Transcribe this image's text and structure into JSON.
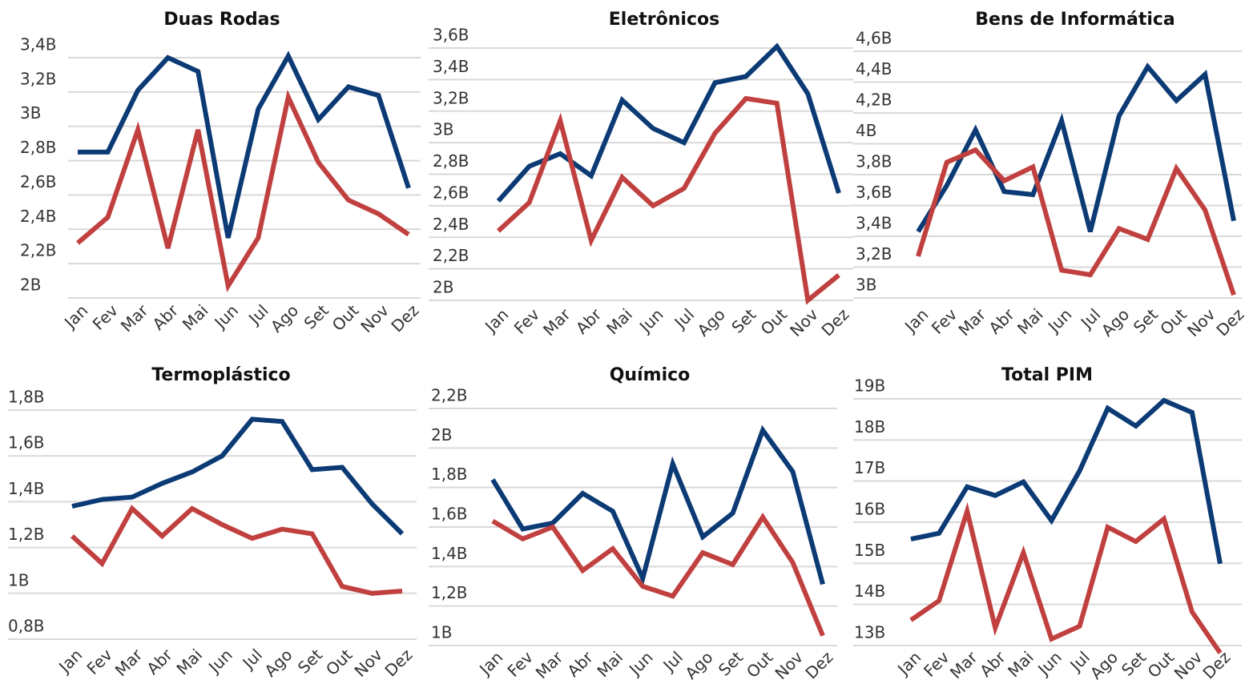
{
  "chart_data": [
    {
      "type": "line",
      "title": "Duas Rodas",
      "categories": [
        "Jan",
        "Fev",
        "Mar",
        "Abr",
        "Mai",
        "Jun",
        "Jul",
        "Ago",
        "Set",
        "Out",
        "Nov",
        "Dez"
      ],
      "series": [
        {
          "color": "#0b3a75",
          "values": [
            2.85,
            2.85,
            3.21,
            3.4,
            3.32,
            2.35,
            3.1,
            3.41,
            3.04,
            3.23,
            3.18,
            2.64
          ]
        },
        {
          "color": "#c0403f",
          "values": [
            2.32,
            2.47,
            2.98,
            2.29,
            2.98,
            2.07,
            2.35,
            3.17,
            2.79,
            2.57,
            2.49,
            2.37
          ]
        }
      ],
      "ylim": [
        2,
        3.4
      ],
      "yticks": [
        {
          "value": 2,
          "label": "2B"
        },
        {
          "value": 2.2,
          "label": "2,2B"
        },
        {
          "value": 2.4,
          "label": "2,4B"
        },
        {
          "value": 2.6,
          "label": "2,6B"
        },
        {
          "value": 2.8,
          "label": "2,8B"
        },
        {
          "value": 3,
          "label": "3B"
        },
        {
          "value": 3.2,
          "label": "3,2B"
        },
        {
          "value": 3.4,
          "label": "3,4B"
        }
      ],
      "grid": true
    },
    {
      "type": "line",
      "title": "Eletrônicos",
      "categories": [
        "Jan",
        "Fev",
        "Mar",
        "Abr",
        "Mai",
        "Jun",
        "Jul",
        "Ago",
        "Set",
        "Out",
        "Nov",
        "Dez"
      ],
      "series": [
        {
          "color": "#0b3a75",
          "values": [
            2.63,
            2.85,
            2.93,
            2.79,
            3.27,
            3.09,
            3.0,
            3.38,
            3.42,
            3.61,
            3.31,
            2.68
          ]
        },
        {
          "color": "#c0403f",
          "values": [
            2.44,
            2.62,
            3.14,
            2.38,
            2.78,
            2.6,
            2.71,
            3.06,
            3.28,
            3.25,
            2.0,
            2.16
          ]
        }
      ],
      "ylim": [
        2,
        3.6
      ],
      "yticks": [
        {
          "value": 2,
          "label": "2B"
        },
        {
          "value": 2.2,
          "label": "2,2B"
        },
        {
          "value": 2.4,
          "label": "2,4B"
        },
        {
          "value": 2.6,
          "label": "2,6B"
        },
        {
          "value": 2.8,
          "label": "2,8B"
        },
        {
          "value": 3,
          "label": "3B"
        },
        {
          "value": 3.2,
          "label": "3,2B"
        },
        {
          "value": 3.4,
          "label": "3,4B"
        },
        {
          "value": 3.6,
          "label": "3,6B"
        }
      ],
      "grid": true
    },
    {
      "type": "line",
      "title": "Bens de Informática",
      "categories": [
        "Jan",
        "Fev",
        "Mar",
        "Abr",
        "Mai",
        "Jun",
        "Jul",
        "Ago",
        "Set",
        "Out",
        "Nov",
        "Dez"
      ],
      "series": [
        {
          "color": "#0b3a75",
          "values": [
            3.43,
            3.73,
            4.09,
            3.69,
            3.67,
            4.15,
            3.43,
            4.18,
            4.5,
            4.28,
            4.45,
            3.5
          ]
        },
        {
          "color": "#c0403f",
          "values": [
            3.27,
            3.88,
            3.96,
            3.76,
            3.85,
            3.18,
            3.15,
            3.45,
            3.38,
            3.84,
            3.57,
            3.02
          ]
        }
      ],
      "ylim": [
        3,
        4.6
      ],
      "yticks": [
        {
          "value": 3,
          "label": "3B"
        },
        {
          "value": 3.2,
          "label": "3,2B"
        },
        {
          "value": 3.4,
          "label": "3,4B"
        },
        {
          "value": 3.6,
          "label": "3,6B"
        },
        {
          "value": 3.8,
          "label": "3,8B"
        },
        {
          "value": 4,
          "label": "4B"
        },
        {
          "value": 4.2,
          "label": "4,2B"
        },
        {
          "value": 4.4,
          "label": "4,4B"
        },
        {
          "value": 4.6,
          "label": "4,6B"
        }
      ],
      "grid": true
    },
    {
      "type": "line",
      "title": "Termoplástico",
      "categories": [
        "Jan",
        "Fev",
        "Mar",
        "Abr",
        "Mai",
        "Jun",
        "Jul",
        "Ago",
        "Set",
        "Out",
        "Nov",
        "Dez"
      ],
      "series": [
        {
          "color": "#0b3a75",
          "values": [
            1.38,
            1.41,
            1.42,
            1.48,
            1.53,
            1.6,
            1.76,
            1.75,
            1.54,
            1.55,
            1.39,
            1.26
          ]
        },
        {
          "color": "#c0403f",
          "values": [
            1.25,
            1.13,
            1.37,
            1.25,
            1.37,
            1.3,
            1.24,
            1.28,
            1.26,
            1.03,
            1.0,
            1.01
          ]
        }
      ],
      "ylim": [
        0.8,
        1.8
      ],
      "yticks": [
        {
          "value": 0.8,
          "label": "0,8B"
        },
        {
          "value": 1,
          "label": "1B"
        },
        {
          "value": 1.2,
          "label": "1,2B"
        },
        {
          "value": 1.4,
          "label": "1,4B"
        },
        {
          "value": 1.6,
          "label": "1,6B"
        },
        {
          "value": 1.8,
          "label": "1,8B"
        }
      ],
      "grid": true
    },
    {
      "type": "line",
      "title": "Químico",
      "categories": [
        "Jan",
        "Fev",
        "Mar",
        "Abr",
        "Mai",
        "Jun",
        "Jul",
        "Ago",
        "Set",
        "Out",
        "Nov",
        "Dez"
      ],
      "series": [
        {
          "color": "#0b3a75",
          "values": [
            1.84,
            1.59,
            1.62,
            1.77,
            1.68,
            1.34,
            1.92,
            1.55,
            1.67,
            2.09,
            1.88,
            1.31
          ]
        },
        {
          "color": "#c0403f",
          "values": [
            1.63,
            1.54,
            1.6,
            1.38,
            1.49,
            1.3,
            1.25,
            1.47,
            1.41,
            1.65,
            1.42,
            1.05
          ]
        }
      ],
      "ylim": [
        1,
        2.2
      ],
      "yticks": [
        {
          "value": 1,
          "label": "1B"
        },
        {
          "value": 1.2,
          "label": "1,2B"
        },
        {
          "value": 1.4,
          "label": "1,4B"
        },
        {
          "value": 1.6,
          "label": "1,6B"
        },
        {
          "value": 1.8,
          "label": "1,8B"
        },
        {
          "value": 2,
          "label": "2B"
        },
        {
          "value": 2.2,
          "label": "2,2B"
        }
      ],
      "grid": true
    },
    {
      "type": "line",
      "title": "Total PIM",
      "categories": [
        "Jan",
        "Fev",
        "Mar",
        "Abr",
        "Mai",
        "Jun",
        "Jul",
        "Ago",
        "Set",
        "Out",
        "Nov",
        "Dez"
      ],
      "series": [
        {
          "color": "#0b3a75",
          "values": [
            15.59,
            15.73,
            16.86,
            16.65,
            16.98,
            16.04,
            17.25,
            18.77,
            18.34,
            18.96,
            18.67,
            14.99
          ]
        },
        {
          "color": "#c0403f",
          "values": [
            13.62,
            14.09,
            16.27,
            13.43,
            15.26,
            13.16,
            13.47,
            15.88,
            15.53,
            16.08,
            13.82,
            12.82
          ]
        }
      ],
      "ylim": [
        13,
        19
      ],
      "yticks": [
        {
          "value": 13,
          "label": "13B"
        },
        {
          "value": 14,
          "label": "14B"
        },
        {
          "value": 15,
          "label": "15B"
        },
        {
          "value": 16,
          "label": "16B"
        },
        {
          "value": 17,
          "label": "17B"
        },
        {
          "value": 18,
          "label": "18B"
        },
        {
          "value": 19,
          "label": "19B"
        }
      ],
      "grid": true
    }
  ]
}
